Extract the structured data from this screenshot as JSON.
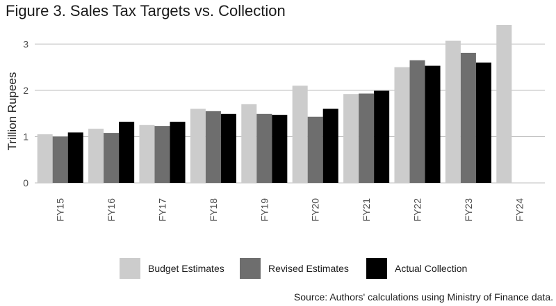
{
  "chart_data": {
    "type": "bar",
    "title": "Figure 3. Sales Tax Targets vs. Collection",
    "xlabel": "",
    "ylabel": "Trillion Rupees",
    "ylim": [
      0,
      3.5
    ],
    "yticks": [
      0,
      1,
      2,
      3
    ],
    "grid": true,
    "legend_position": "bottom",
    "categories": [
      "FY15",
      "FY16",
      "FY17",
      "FY18",
      "FY19",
      "FY20",
      "FY21",
      "FY22",
      "FY23",
      "FY24"
    ],
    "series": [
      {
        "name": "Budget Estimates",
        "color": "#cccccc",
        "values": [
          1.05,
          1.17,
          1.25,
          1.6,
          1.7,
          2.1,
          1.92,
          2.5,
          3.07,
          3.41
        ]
      },
      {
        "name": "Revised Estimates",
        "color": "#6e6e6e",
        "values": [
          1.0,
          1.08,
          1.23,
          1.55,
          1.49,
          1.43,
          1.93,
          2.65,
          2.81,
          null
        ]
      },
      {
        "name": "Actual Collection",
        "color": "#000000",
        "values": [
          1.09,
          1.32,
          1.32,
          1.49,
          1.47,
          1.6,
          1.99,
          2.53,
          2.6,
          null
        ]
      }
    ]
  },
  "source_note": "Source: Authors' calculations using Ministry of Finance data."
}
